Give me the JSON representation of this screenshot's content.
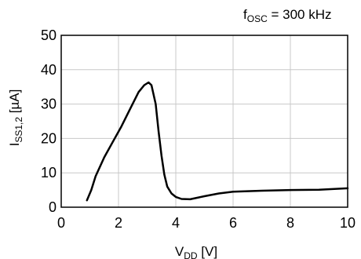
{
  "chart_data": {
    "type": "line",
    "annotation": {
      "main": "f",
      "sub": "OSC",
      "suffix": " = 300 kHz"
    },
    "xlabel": {
      "main": "V",
      "sub": "DD",
      "suffix": " [V]"
    },
    "ylabel": {
      "main": "I",
      "sub": "SS1,2",
      "suffix": " [µA]"
    },
    "xlim": [
      0,
      10
    ],
    "ylim": [
      0,
      50
    ],
    "x_ticks": [
      0,
      2,
      4,
      6,
      8,
      10
    ],
    "y_ticks": [
      0,
      10,
      20,
      30,
      40,
      50
    ],
    "grid": true,
    "series": [
      {
        "color": "#000000",
        "points": [
          [
            0.9,
            2.0
          ],
          [
            1.05,
            5.0
          ],
          [
            1.2,
            9.0
          ],
          [
            1.5,
            14.5
          ],
          [
            1.8,
            19.0
          ],
          [
            2.1,
            23.5
          ],
          [
            2.4,
            28.5
          ],
          [
            2.7,
            33.5
          ],
          [
            2.9,
            35.5
          ],
          [
            3.05,
            36.3
          ],
          [
            3.15,
            35.5
          ],
          [
            3.3,
            30.0
          ],
          [
            3.4,
            22.0
          ],
          [
            3.5,
            15.0
          ],
          [
            3.6,
            9.5
          ],
          [
            3.7,
            6.0
          ],
          [
            3.85,
            4.0
          ],
          [
            4.0,
            3.0
          ],
          [
            4.2,
            2.4
          ],
          [
            4.5,
            2.3
          ],
          [
            5.0,
            3.2
          ],
          [
            5.5,
            4.0
          ],
          [
            6.0,
            4.5
          ],
          [
            7.0,
            4.8
          ],
          [
            8.0,
            5.0
          ],
          [
            9.0,
            5.1
          ],
          [
            10.0,
            5.5
          ]
        ]
      }
    ]
  }
}
